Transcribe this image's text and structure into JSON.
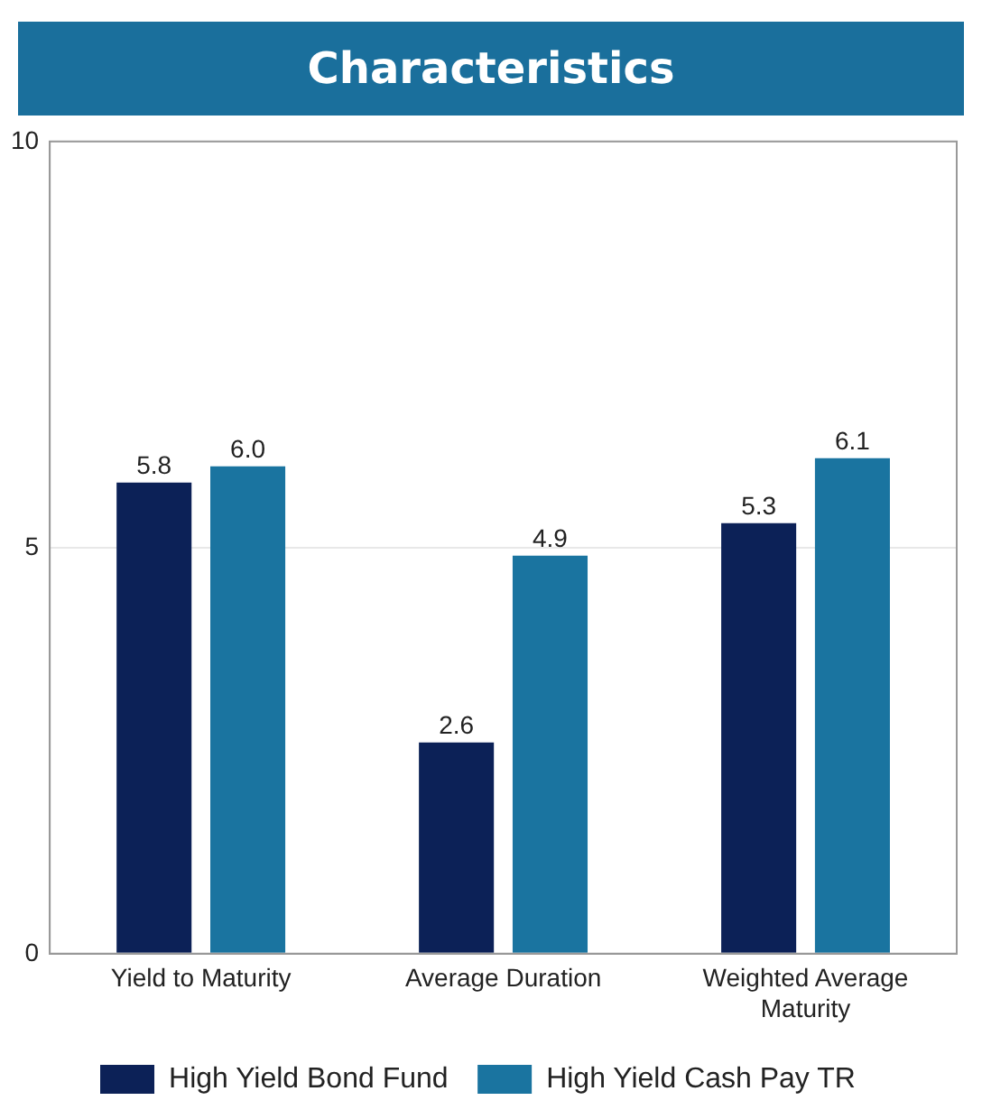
{
  "chart_data": {
    "type": "bar",
    "title": "Characteristics",
    "categories": [
      "Yield to Maturity",
      "Average Duration",
      "Weighted Average Maturity"
    ],
    "series": [
      {
        "name": "High Yield Bond Fund",
        "color": "#0c2157",
        "values": [
          5.8,
          2.6,
          5.3
        ],
        "value_labels": [
          "5.8",
          "2.6",
          "5.3"
        ]
      },
      {
        "name": "High Yield Cash Pay TR",
        "color": "#1a74a0",
        "values": [
          6.0,
          4.9,
          6.1
        ],
        "value_labels": [
          "6.0",
          "4.9",
          "6.1"
        ]
      }
    ],
    "ylim": [
      0,
      10
    ],
    "yticks": [
      0,
      5,
      10
    ],
    "grid": "y",
    "legend": "bottom"
  }
}
